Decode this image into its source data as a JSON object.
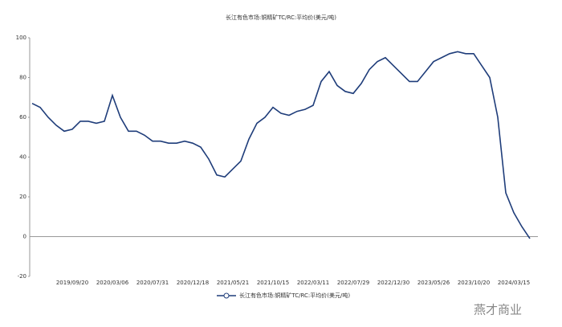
{
  "chart_data": {
    "type": "line",
    "title": "长江有色市场:铜精矿TC/RC:平均价(美元/吨)",
    "categories": [
      null,
      null,
      null,
      null,
      null,
      "2019/09/20",
      null,
      null,
      null,
      null,
      "2020/03/06",
      null,
      null,
      null,
      null,
      "2020/07/31",
      null,
      null,
      null,
      null,
      "2020/12/18",
      null,
      null,
      null,
      null,
      "2021/05/21",
      null,
      null,
      null,
      null,
      "2021/10/15",
      null,
      null,
      null,
      null,
      "2022/03/11",
      null,
      null,
      null,
      null,
      "2022/07/29",
      null,
      null,
      null,
      null,
      "2022/12/30",
      null,
      null,
      null,
      null,
      "2023/05/26",
      null,
      null,
      null,
      null,
      "2023/10/20",
      null,
      null,
      null,
      null,
      "2024/03/15",
      null,
      null
    ],
    "series": [
      {
        "name": "长江有色市场:铜精矿TC/RC:平均价(美元/吨)",
        "color": "#1f3d7a",
        "values": [
          67,
          65,
          60,
          56,
          53,
          54,
          58,
          58,
          57,
          58,
          71,
          60,
          53,
          53,
          51,
          48,
          48,
          47,
          47,
          48,
          47,
          45,
          39,
          31,
          30,
          34,
          38,
          49,
          57,
          60,
          65,
          62,
          61,
          63,
          64,
          66,
          78,
          83,
          76,
          73,
          72,
          77,
          84,
          88,
          90,
          86,
          82,
          78,
          78,
          83,
          88,
          90,
          92,
          93,
          92,
          92,
          86,
          80,
          60,
          22,
          12,
          5,
          -1
        ]
      }
    ],
    "ylim": [
      -20,
      100
    ],
    "yticks": [
      -20,
      0,
      20,
      40,
      60,
      80,
      100
    ],
    "watermark": "燕才商业"
  }
}
